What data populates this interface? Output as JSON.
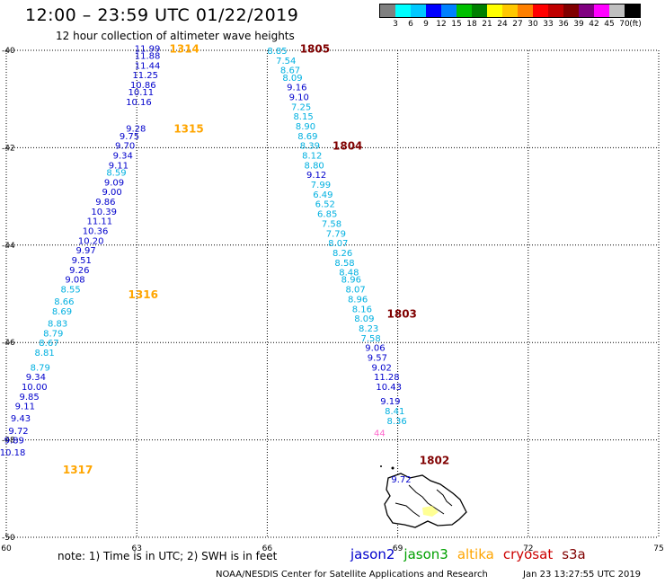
{
  "title": "12:00 – 23:59 UTC 01/22/2019",
  "subtitle": "12 hour collection of altimeter wave heights",
  "colorbar": {
    "unit": "(ft)",
    "labels": [
      "3",
      "6",
      "9",
      "12",
      "15",
      "18",
      "21",
      "24",
      "27",
      "30",
      "33",
      "36",
      "39",
      "42",
      "45",
      "70"
    ],
    "colors": [
      "#808080",
      "#00ffff",
      "#00c8ff",
      "#0000ff",
      "#0080ff",
      "#00c000",
      "#008000",
      "#ffff00",
      "#ffc800",
      "#ff8000",
      "#ff0000",
      "#c00000",
      "#800000",
      "#800080",
      "#ff00ff",
      "#c0c0c0",
      "#000000"
    ]
  },
  "axes": {
    "lat_labels": [
      "-40",
      "-42",
      "-44",
      "-46",
      "-48",
      "-50"
    ],
    "lon_labels": [
      "60",
      "63",
      "66",
      "69",
      "72",
      "75"
    ],
    "lat_range": [
      -50,
      -40
    ],
    "lon_range": [
      60,
      75
    ]
  },
  "series_colors": {
    "jason2": "#0000cc",
    "altika": "#ffa500",
    "cryosat": "#cc0000",
    "s3a": "#800000",
    "light": "#00b0e0",
    "pink": "#ff66cc",
    "yellow": "#e0e000"
  },
  "chart_data": {
    "type": "scatter",
    "tracks": [
      {
        "label_color": "#ffa500",
        "passes": [
          {
            "label": "1314",
            "lon": 63.75,
            "lat": -39.95
          },
          {
            "label": "1315",
            "lon": 63.85,
            "lat": -41.6
          },
          {
            "label": "1316",
            "lon": 62.8,
            "lat": -45.0
          },
          {
            "label": "1317",
            "lon": 61.3,
            "lat": -48.6
          }
        ],
        "points": [
          {
            "v": "11.99",
            "lon": 62.95,
            "lat": -39.95,
            "c": "#0000cc"
          },
          {
            "v": "11.88",
            "lon": 62.95,
            "lat": -40.1,
            "c": "#0000cc"
          },
          {
            "v": "11.44",
            "lon": 62.95,
            "lat": -40.3,
            "c": "#0000cc"
          },
          {
            "v": "11.25",
            "lon": 62.9,
            "lat": -40.5,
            "c": "#0000cc"
          },
          {
            "v": "10.86",
            "lon": 62.85,
            "lat": -40.7,
            "c": "#0000cc"
          },
          {
            "v": "10.11",
            "lon": 62.8,
            "lat": -40.85,
            "c": "#0000cc"
          },
          {
            "v": "10.16",
            "lon": 62.75,
            "lat": -41.05,
            "c": "#0000cc"
          },
          {
            "v": "9.28",
            "lon": 62.75,
            "lat": -41.6,
            "c": "#0000cc"
          },
          {
            "v": "9.75",
            "lon": 62.6,
            "lat": -41.75,
            "c": "#0000cc"
          },
          {
            "v": "9.70",
            "lon": 62.5,
            "lat": -41.95,
            "c": "#0000cc"
          },
          {
            "v": "9.34",
            "lon": 62.45,
            "lat": -42.15,
            "c": "#0000cc"
          },
          {
            "v": "9.11",
            "lon": 62.35,
            "lat": -42.35,
            "c": "#0000cc"
          },
          {
            "v": "8.59",
            "lon": 62.3,
            "lat": -42.5,
            "c": "#00b0e0"
          },
          {
            "v": "9.09",
            "lon": 62.25,
            "lat": -42.7,
            "c": "#0000cc"
          },
          {
            "v": "9.00",
            "lon": 62.2,
            "lat": -42.9,
            "c": "#0000cc"
          },
          {
            "v": "9.86",
            "lon": 62.05,
            "lat": -43.1,
            "c": "#0000cc"
          },
          {
            "v": "10.39",
            "lon": 61.95,
            "lat": -43.3,
            "c": "#0000cc"
          },
          {
            "v": "11.11",
            "lon": 61.85,
            "lat": -43.5,
            "c": "#0000cc"
          },
          {
            "v": "10.36",
            "lon": 61.75,
            "lat": -43.7,
            "c": "#0000cc"
          },
          {
            "v": "10.20",
            "lon": 61.65,
            "lat": -43.9,
            "c": "#0000cc"
          },
          {
            "v": "9.97",
            "lon": 61.6,
            "lat": -44.1,
            "c": "#0000cc"
          },
          {
            "v": "9.51",
            "lon": 61.5,
            "lat": -44.3,
            "c": "#0000cc"
          },
          {
            "v": "9.26",
            "lon": 61.45,
            "lat": -44.5,
            "c": "#0000cc"
          },
          {
            "v": "9.08",
            "lon": 61.35,
            "lat": -44.7,
            "c": "#0000cc"
          },
          {
            "v": "8.55",
            "lon": 61.25,
            "lat": -44.9,
            "c": "#00b0e0"
          },
          {
            "v": "8.66",
            "lon": 61.1,
            "lat": -45.15,
            "c": "#00b0e0"
          },
          {
            "v": "8.69",
            "lon": 61.05,
            "lat": -45.35,
            "c": "#00b0e0"
          },
          {
            "v": "8.83",
            "lon": 60.95,
            "lat": -45.6,
            "c": "#00b0e0"
          },
          {
            "v": "8.79",
            "lon": 60.85,
            "lat": -45.8,
            "c": "#00b0e0"
          },
          {
            "v": "8.67",
            "lon": 60.75,
            "lat": -46.0,
            "c": "#00b0e0"
          },
          {
            "v": "8.81",
            "lon": 60.65,
            "lat": -46.2,
            "c": "#00b0e0"
          },
          {
            "v": "8.79",
            "lon": 60.55,
            "lat": -46.5,
            "c": "#00b0e0"
          },
          {
            "v": "9.34",
            "lon": 60.45,
            "lat": -46.7,
            "c": "#0000cc"
          },
          {
            "v": "10.00",
            "lon": 60.35,
            "lat": -46.9,
            "c": "#0000cc"
          },
          {
            "v": "9.85",
            "lon": 60.3,
            "lat": -47.1,
            "c": "#0000cc"
          },
          {
            "v": "9.11",
            "lon": 60.2,
            "lat": -47.3,
            "c": "#0000cc"
          },
          {
            "v": "9.43",
            "lon": 60.1,
            "lat": -47.55,
            "c": "#0000cc"
          },
          {
            "v": "9.72",
            "lon": 60.05,
            "lat": -47.8,
            "c": "#0000cc"
          },
          {
            "v": "9.89",
            "lon": 59.95,
            "lat": -48.0,
            "c": "#0000cc"
          },
          {
            "v": "10.18",
            "lon": 59.85,
            "lat": -48.25,
            "c": "#0000cc"
          }
        ]
      },
      {
        "label_color": "#800000",
        "passes": [
          {
            "label": "1805",
            "lon": 66.75,
            "lat": -39.95
          },
          {
            "label": "1804",
            "lon": 67.5,
            "lat": -41.95
          },
          {
            "label": "1803",
            "lon": 68.75,
            "lat": -45.4
          },
          {
            "label": "1802",
            "lon": 69.5,
            "lat": -48.4
          }
        ],
        "points": [
          {
            "v": "8.85",
            "lon": 66.0,
            "lat": -40.0,
            "c": "#00b0e0"
          },
          {
            "v": "7.54",
            "lon": 66.2,
            "lat": -40.2,
            "c": "#00b0e0"
          },
          {
            "v": "8.67",
            "lon": 66.3,
            "lat": -40.4,
            "c": "#00b0e0"
          },
          {
            "v": "8.09",
            "lon": 66.35,
            "lat": -40.55,
            "c": "#00b0e0"
          },
          {
            "v": "9.16",
            "lon": 66.45,
            "lat": -40.75,
            "c": "#0000cc"
          },
          {
            "v": "9.10",
            "lon": 66.5,
            "lat": -40.95,
            "c": "#0000cc"
          },
          {
            "v": "7.25",
            "lon": 66.55,
            "lat": -41.15,
            "c": "#00b0e0"
          },
          {
            "v": "8.15",
            "lon": 66.6,
            "lat": -41.35,
            "c": "#00b0e0"
          },
          {
            "v": "8.90",
            "lon": 66.65,
            "lat": -41.55,
            "c": "#00b0e0"
          },
          {
            "v": "8.69",
            "lon": 66.7,
            "lat": -41.75,
            "c": "#00b0e0"
          },
          {
            "v": "8.39",
            "lon": 66.75,
            "lat": -41.95,
            "c": "#00b0e0"
          },
          {
            "v": "8.12",
            "lon": 66.8,
            "lat": -42.15,
            "c": "#00b0e0"
          },
          {
            "v": "8.80",
            "lon": 66.85,
            "lat": -42.35,
            "c": "#00b0e0"
          },
          {
            "v": "9.12",
            "lon": 66.9,
            "lat": -42.55,
            "c": "#0000cc"
          },
          {
            "v": "7.99",
            "lon": 67.0,
            "lat": -42.75,
            "c": "#00b0e0"
          },
          {
            "v": "6.49",
            "lon": 67.05,
            "lat": -42.95,
            "c": "#00b0e0"
          },
          {
            "v": "6.52",
            "lon": 67.1,
            "lat": -43.15,
            "c": "#00b0e0"
          },
          {
            "v": "6.85",
            "lon": 67.15,
            "lat": -43.35,
            "c": "#00b0e0"
          },
          {
            "v": "7.58",
            "lon": 67.25,
            "lat": -43.55,
            "c": "#00b0e0"
          },
          {
            "v": "7.79",
            "lon": 67.35,
            "lat": -43.75,
            "c": "#00b0e0"
          },
          {
            "v": "8.07",
            "lon": 67.4,
            "lat": -43.95,
            "c": "#00b0e0"
          },
          {
            "v": "8.26",
            "lon": 67.5,
            "lat": -44.15,
            "c": "#00b0e0"
          },
          {
            "v": "8.58",
            "lon": 67.55,
            "lat": -44.35,
            "c": "#00b0e0"
          },
          {
            "v": "8.48",
            "lon": 67.65,
            "lat": -44.55,
            "c": "#00b0e0"
          },
          {
            "v": "8.96",
            "lon": 67.7,
            "lat": -44.7,
            "c": "#00b0e0"
          },
          {
            "v": "8.07",
            "lon": 67.8,
            "lat": -44.9,
            "c": "#00b0e0"
          },
          {
            "v": "8.96",
            "lon": 67.85,
            "lat": -45.1,
            "c": "#00b0e0"
          },
          {
            "v": "8.16",
            "lon": 67.95,
            "lat": -45.3,
            "c": "#00b0e0"
          },
          {
            "v": "8.09",
            "lon": 68.0,
            "lat": -45.5,
            "c": "#00b0e0"
          },
          {
            "v": "8.23",
            "lon": 68.1,
            "lat": -45.7,
            "c": "#00b0e0"
          },
          {
            "v": "7.58",
            "lon": 68.15,
            "lat": -45.9,
            "c": "#00b0e0"
          },
          {
            "v": "9.06",
            "lon": 68.25,
            "lat": -46.1,
            "c": "#0000cc"
          },
          {
            "v": "9.57",
            "lon": 68.3,
            "lat": -46.3,
            "c": "#0000cc"
          },
          {
            "v": "9.02",
            "lon": 68.4,
            "lat": -46.5,
            "c": "#0000cc"
          },
          {
            "v": "11.28",
            "lon": 68.45,
            "lat": -46.7,
            "c": "#0000cc"
          },
          {
            "v": "10.43",
            "lon": 68.5,
            "lat": -46.9,
            "c": "#0000cc"
          },
          {
            "v": "9.19",
            "lon": 68.6,
            "lat": -47.2,
            "c": "#0000cc"
          },
          {
            "v": "8.41",
            "lon": 68.7,
            "lat": -47.4,
            "c": "#00b0e0"
          },
          {
            "v": "8.36",
            "lon": 68.75,
            "lat": -47.6,
            "c": "#00b0e0"
          },
          {
            "v": "44",
            "lon": 68.45,
            "lat": -47.85,
            "c": "#ff66cc"
          },
          {
            "v": "9.72",
            "lon": 68.85,
            "lat": -48.8,
            "c": "#0000cc"
          }
        ]
      }
    ]
  },
  "note": "note: 1) Time is in UTC; 2) SWH is in feet",
  "legend": [
    {
      "name": "jason2",
      "color": "#0000cc"
    },
    {
      "name": "jason3",
      "color": "#00a000"
    },
    {
      "name": "altika",
      "color": "#ffa500"
    },
    {
      "name": "cryosat",
      "color": "#cc0000"
    },
    {
      "name": "s3a",
      "color": "#800000"
    }
  ],
  "footer": "NOAA/NESDIS Center for Satellite Applications and Research",
  "timestamp": "Jan 23 13:27:55 UTC 2019"
}
